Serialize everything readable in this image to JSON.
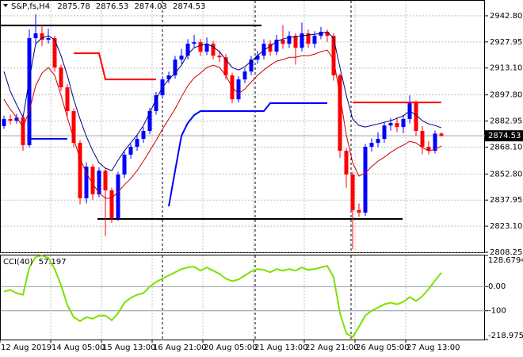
{
  "chart_data": {
    "type": "candlestick",
    "title": "S&P,fs,H4",
    "bull_color": "#0000ff",
    "bear_color": "#ff0000",
    "grid": true,
    "categories": [
      "12 Aug 2019",
      null,
      null,
      null,
      null,
      null,
      null,
      null,
      "14 Aug 05:00",
      null,
      null,
      null,
      null,
      null,
      null,
      null,
      "15 Aug 13:00",
      null,
      null,
      null,
      null,
      null,
      null,
      null,
      "16 Aug 21:00",
      null,
      null,
      null,
      null,
      null,
      null,
      null,
      "20 Aug 05:00",
      null,
      null,
      null,
      null,
      null,
      null,
      null,
      "21 Aug 13:00",
      null,
      null,
      null,
      null,
      null,
      null,
      null,
      "22 Aug 21:00",
      null,
      null,
      null,
      null,
      null,
      null,
      null,
      "26 Aug 05:00",
      null,
      null,
      null,
      null,
      null,
      null,
      null,
      "27 Aug 13:00",
      null,
      null,
      null,
      null,
      null
    ],
    "open": [
      2880.0,
      2884.1,
      2883.1,
      2884.9,
      2869.2,
      2930.1,
      2932.8,
      2929.2,
      2930.1,
      2913.4,
      2902.1,
      2888.6,
      2870.5,
      2839.0,
      2857.0,
      2841.2,
      2854.7,
      2843.5,
      2827.7,
      2852.5,
      2863.8,
      2868.3,
      2872.8,
      2877.3,
      2888.6,
      2897.6,
      2906.6,
      2908.9,
      2917.9,
      2920.1,
      2926.9,
      2927.8,
      2922.4,
      2926.9,
      2920.1,
      2919.2,
      2908.9,
      2895.3,
      2906.6,
      2911.1,
      2917.9,
      2920.1,
      2926.9,
      2922.4,
      2929.2,
      2926.9,
      2931.4,
      2924.6,
      2932.8,
      2926.9,
      2931.4,
      2933.7,
      2931.4,
      2908.9,
      2866.0,
      2852.5,
      2832.2,
      2830.8,
      2868.3,
      2870.5,
      2872.8,
      2880.4,
      2881.8,
      2879.5,
      2884.1,
      2893.1,
      2877.3,
      2868.3,
      2866.0,
      2875.78
    ],
    "high": [
      2886.0,
      2886.5,
      2887.0,
      2886.5,
      2935.0,
      2943.6,
      2938.0,
      2935.5,
      2931.5,
      2915.0,
      2904.0,
      2890.0,
      2872.0,
      2859.5,
      2858.5,
      2856.5,
      2856.0,
      2845.0,
      2854.0,
      2865.5,
      2870.0,
      2875.0,
      2879.5,
      2890.5,
      2899.5,
      2908.5,
      2911.0,
      2920.0,
      2924.0,
      2929.5,
      2932.0,
      2929.5,
      2930.5,
      2928.5,
      2923.0,
      2921.0,
      2910.5,
      2908.5,
      2913.0,
      2920.0,
      2923.0,
      2929.5,
      2929.0,
      2932.0,
      2937.5,
      2934.0,
      2933.0,
      2939.0,
      2935.0,
      2934.0,
      2936.5,
      2935.0,
      2933.0,
      2910.0,
      2867.5,
      2854.0,
      2836.0,
      2870.0,
      2873.0,
      2876.5,
      2882.5,
      2884.5,
      2885.0,
      2886.5,
      2897.5,
      2894.5,
      2880.0,
      2871.5,
      2877.5,
      2876.53
    ],
    "low": [
      2878.5,
      2881.0,
      2881.5,
      2866.0,
      2868.0,
      2926.0,
      2925.5,
      2927.0,
      2911.0,
      2900.0,
      2886.0,
      2868.0,
      2835.5,
      2836.0,
      2838.0,
      2839.5,
      2817.5,
      2825.0,
      2826.0,
      2850.5,
      2861.5,
      2866.0,
      2870.5,
      2875.5,
      2886.5,
      2895.5,
      2904.5,
      2907.0,
      2915.5,
      2918.0,
      2924.5,
      2920.0,
      2920.5,
      2918.0,
      2916.5,
      2906.5,
      2893.0,
      2893.5,
      2904.5,
      2909.0,
      2915.5,
      2918.0,
      2920.0,
      2920.5,
      2924.0,
      2924.5,
      2915.0,
      2922.5,
      2924.5,
      2924.5,
      2929.5,
      2928.0,
      2906.0,
      2862.0,
      2845.0,
      2810.0,
      2828.5,
      2829.0,
      2865.5,
      2868.0,
      2870.5,
      2877.5,
      2876.5,
      2876.0,
      2881.5,
      2874.5,
      2864.0,
      2864.0,
      2864.5,
      2874.03
    ],
    "close": [
      2884.1,
      2883.1,
      2884.9,
      2869.2,
      2930.1,
      2932.8,
      2929.2,
      2930.1,
      2913.4,
      2902.1,
      2888.6,
      2870.5,
      2839.0,
      2857.0,
      2841.2,
      2854.7,
      2843.5,
      2827.7,
      2852.5,
      2863.8,
      2868.3,
      2872.8,
      2877.3,
      2888.6,
      2897.6,
      2906.6,
      2908.9,
      2917.9,
      2920.1,
      2926.9,
      2927.8,
      2922.4,
      2926.9,
      2920.1,
      2919.2,
      2908.9,
      2895.3,
      2906.6,
      2911.1,
      2917.9,
      2920.1,
      2926.9,
      2922.4,
      2929.2,
      2926.9,
      2931.4,
      2924.6,
      2932.8,
      2926.9,
      2931.4,
      2933.7,
      2931.4,
      2908.9,
      2866.0,
      2852.5,
      2832.2,
      2830.8,
      2868.3,
      2870.5,
      2872.8,
      2880.4,
      2881.8,
      2879.5,
      2884.1,
      2893.1,
      2877.3,
      2868.3,
      2866.0,
      2875.78,
      2874.53
    ],
    "ma_fast": {
      "color": "#000080",
      "values": [
        2911.1,
        2899.8,
        2892.2,
        2885.0,
        2906.6,
        2926.9,
        2930.1,
        2931.4,
        2929.2,
        2920.1,
        2908.9,
        2895.3,
        2884.1,
        2874.1,
        2866.0,
        2859.2,
        2856.1,
        2854.7,
        2860.6,
        2866.0,
        2870.5,
        2875.0,
        2880.4,
        2887.7,
        2895.3,
        2902.1,
        2906.6,
        2910.2,
        2914.7,
        2921.0,
        2924.6,
        2926.0,
        2926.9,
        2925.1,
        2922.4,
        2917.9,
        2913.4,
        2912.0,
        2913.8,
        2917.0,
        2920.1,
        2923.3,
        2925.5,
        2928.2,
        2929.6,
        2930.5,
        2930.9,
        2931.4,
        2931.9,
        2932.3,
        2932.8,
        2933.7,
        2930.1,
        2913.4,
        2897.6,
        2884.1,
        2880.4,
        2879.5,
        2880.4,
        2881.3,
        2882.2,
        2883.1,
        2884.5,
        2885.9,
        2888.6,
        2886.3,
        2883.1,
        2881.3,
        2880.4,
        2879.1
      ]
    },
    "ma_slow": {
      "color": "#cc0000",
      "values": [
        2895.3,
        2889.5,
        2885.0,
        2879.5,
        2888.6,
        2903.0,
        2910.2,
        2913.4,
        2908.9,
        2897.6,
        2885.0,
        2872.8,
        2861.5,
        2853.4,
        2847.1,
        2842.1,
        2839.0,
        2839.0,
        2842.6,
        2846.6,
        2850.2,
        2854.7,
        2860.1,
        2866.0,
        2871.9,
        2878.2,
        2884.1,
        2889.9,
        2896.7,
        2903.0,
        2907.5,
        2910.2,
        2913.4,
        2914.7,
        2913.4,
        2908.9,
        2902.1,
        2898.5,
        2901.2,
        2905.2,
        2908.9,
        2912.0,
        2914.7,
        2917.0,
        2917.9,
        2919.2,
        2919.2,
        2920.1,
        2920.1,
        2921.0,
        2922.4,
        2923.3,
        2917.9,
        2897.6,
        2875.0,
        2859.2,
        2851.6,
        2853.4,
        2857.0,
        2860.1,
        2862.4,
        2865.1,
        2867.4,
        2869.2,
        2871.4,
        2870.5,
        2867.8,
        2866.0,
        2866.9,
        2868.7
      ]
    },
    "stop_red": {
      "color": "#ff0000",
      "values": [
        null,
        null,
        null,
        null,
        null,
        null,
        null,
        null,
        null,
        null,
        null,
        2921.5,
        2921.5,
        2921.5,
        2921.5,
        2921.5,
        2906.6,
        2906.6,
        2906.6,
        2906.6,
        2906.6,
        2906.6,
        2906.6,
        2906.6,
        2906.6,
        null,
        null,
        null,
        null,
        null,
        null,
        null,
        null,
        null,
        null,
        null,
        null,
        null,
        null,
        null,
        null,
        null,
        null,
        null,
        null,
        null,
        null,
        null,
        null,
        null,
        null,
        null,
        null,
        null,
        null,
        2893.5,
        2893.5,
        2893.5,
        2893.5,
        2893.5,
        2893.5,
        2893.5,
        2893.5,
        2893.5,
        2893.5,
        2893.5,
        2893.5,
        2893.5,
        2893.5,
        2893.5
      ]
    },
    "stop_blue": {
      "color": "#0000ff",
      "values": [
        null,
        null,
        null,
        null,
        2872.8,
        2872.8,
        2872.8,
        2872.8,
        2872.8,
        2872.8,
        2872.8,
        null,
        null,
        null,
        null,
        null,
        null,
        null,
        null,
        null,
        null,
        null,
        null,
        null,
        null,
        null,
        2834.4,
        2854.7,
        2874.5,
        2881.8,
        2886.3,
        2888.6,
        2888.6,
        2888.6,
        2888.6,
        2888.6,
        2888.6,
        2888.6,
        2888.6,
        2888.6,
        2888.6,
        2888.6,
        2893.1,
        2893.1,
        2893.1,
        2893.1,
        2893.1,
        2893.1,
        2893.1,
        2893.1,
        2893.1,
        2893.1,
        null,
        null,
        null,
        null,
        null,
        null,
        null,
        null,
        null,
        null,
        null,
        null,
        null,
        null,
        null,
        null,
        null,
        null
      ]
    },
    "levels": {
      "color": "#000000",
      "values": [
        2937.3,
        2827.2
      ]
    },
    "ylim": [
      2808.25,
      2951.8
    ],
    "yticks": [
      {
        "value": 2942.8,
        "label": "2942.80"
      },
      2927.95,
      {
        "value": 2913.1,
        "label": "2913.10"
      },
      {
        "value": 2897.8,
        "label": "2897.80"
      },
      2882.95,
      {
        "value": 2868.1,
        "label": "2868.10"
      },
      {
        "value": 2852.8,
        "label": "2852.80"
      },
      2837.95,
      {
        "value": 2823.1,
        "label": "2823.10"
      },
      2808.25
    ],
    "cci": {
      "label": "CCI(40)",
      "color": "#7fe000",
      "values": [
        -20.3,
        -13.7,
        -27.0,
        -33.6,
        79.0,
        122.0,
        128.6,
        118.7,
        72.4,
        6.2,
        -76.6,
        -126.3,
        -142.8,
        -126.3,
        -133.0,
        -119.7,
        -119.7,
        -139.5,
        -109.7,
        -66.7,
        -46.8,
        -33.6,
        -27.0,
        -0.5,
        19.4,
        32.7,
        45.9,
        59.2,
        72.4,
        79.0,
        82.3,
        65.8,
        79.0,
        65.8,
        52.5,
        32.7,
        22.7,
        29.3,
        45.9,
        62.5,
        72.4,
        69.1,
        59.2,
        72.4,
        65.8,
        72.4,
        65.8,
        79.0,
        69.1,
        72.4,
        79.0,
        85.6,
        39.3,
        -109.7,
        -192.5,
        -209.0,
        -166.0,
        -119.7,
        -99.8,
        -86.6,
        -73.4,
        -66.7,
        -73.4,
        -63.5,
        -43.5,
        -60.0,
        -40.0,
        -10.0,
        25.0,
        57.197
      ],
      "ylim": [
        -218.9751,
        128.6794
      ],
      "yticks": [
        128.6794,
        {
          "value": 0,
          "label": "0.00"
        },
        -100,
        -218.9751
      ]
    }
  }
}
